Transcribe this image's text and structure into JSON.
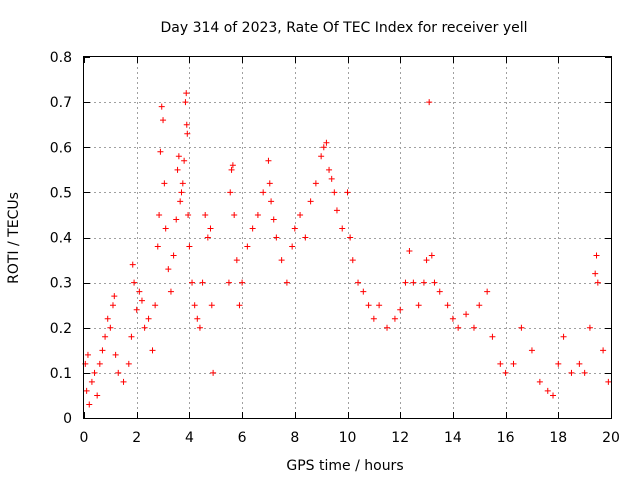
{
  "chart_data": {
    "type": "scatter",
    "title": "Day 314 of 2023, Rate Of TEC Index for receiver yell",
    "xlabel": "GPS time / hours",
    "ylabel": "ROTI / TECUs",
    "xlim": [
      0,
      20
    ],
    "ylim": [
      0,
      0.8
    ],
    "xticks": [
      0,
      2,
      4,
      6,
      8,
      10,
      12,
      14,
      16,
      18,
      20
    ],
    "yticks": [
      0,
      0.1,
      0.2,
      0.3,
      0.4,
      0.5,
      0.6,
      0.7,
      0.8
    ],
    "ytick_labels": [
      "0",
      "0.1",
      "0.2",
      "0.3",
      "0.4",
      "0.5",
      "0.6",
      "0.7",
      "0.8"
    ],
    "grid": true,
    "marker": "+",
    "marker_color": "#ff0000",
    "series": [
      {
        "name": "ROTI",
        "points": [
          [
            0.05,
            0.12
          ],
          [
            0.1,
            0.06
          ],
          [
            0.15,
            0.14
          ],
          [
            0.2,
            0.03
          ],
          [
            0.3,
            0.08
          ],
          [
            0.4,
            0.1
          ],
          [
            0.5,
            0.05
          ],
          [
            0.6,
            0.12
          ],
          [
            0.7,
            0.15
          ],
          [
            0.8,
            0.18
          ],
          [
            0.9,
            0.22
          ],
          [
            1.0,
            0.2
          ],
          [
            1.1,
            0.25
          ],
          [
            1.15,
            0.27
          ],
          [
            1.2,
            0.14
          ],
          [
            1.3,
            0.1
          ],
          [
            1.5,
            0.08
          ],
          [
            1.7,
            0.12
          ],
          [
            1.8,
            0.18
          ],
          [
            1.85,
            0.34
          ],
          [
            1.9,
            0.3
          ],
          [
            2.0,
            0.24
          ],
          [
            2.1,
            0.28
          ],
          [
            2.2,
            0.26
          ],
          [
            2.3,
            0.2
          ],
          [
            2.45,
            0.22
          ],
          [
            2.6,
            0.15
          ],
          [
            2.7,
            0.25
          ],
          [
            2.8,
            0.38
          ],
          [
            2.85,
            0.45
          ],
          [
            2.9,
            0.59
          ],
          [
            2.95,
            0.69
          ],
          [
            3.0,
            0.66
          ],
          [
            3.05,
            0.52
          ],
          [
            3.1,
            0.42
          ],
          [
            3.2,
            0.33
          ],
          [
            3.3,
            0.28
          ],
          [
            3.4,
            0.36
          ],
          [
            3.5,
            0.44
          ],
          [
            3.55,
            0.55
          ],
          [
            3.6,
            0.58
          ],
          [
            3.65,
            0.48
          ],
          [
            3.7,
            0.5
          ],
          [
            3.75,
            0.52
          ],
          [
            3.8,
            0.57
          ],
          [
            3.85,
            0.7
          ],
          [
            3.88,
            0.72
          ],
          [
            3.9,
            0.65
          ],
          [
            3.92,
            0.63
          ],
          [
            3.95,
            0.45
          ],
          [
            4.0,
            0.38
          ],
          [
            4.1,
            0.3
          ],
          [
            4.2,
            0.25
          ],
          [
            4.3,
            0.22
          ],
          [
            4.4,
            0.2
          ],
          [
            4.5,
            0.3
          ],
          [
            4.6,
            0.45
          ],
          [
            4.7,
            0.4
          ],
          [
            4.8,
            0.42
          ],
          [
            4.85,
            0.25
          ],
          [
            4.9,
            0.1
          ],
          [
            5.5,
            0.3
          ],
          [
            5.55,
            0.5
          ],
          [
            5.6,
            0.55
          ],
          [
            5.65,
            0.56
          ],
          [
            5.7,
            0.45
          ],
          [
            5.8,
            0.35
          ],
          [
            5.9,
            0.25
          ],
          [
            6.0,
            0.3
          ],
          [
            6.2,
            0.38
          ],
          [
            6.4,
            0.42
          ],
          [
            6.6,
            0.45
          ],
          [
            6.8,
            0.5
          ],
          [
            7.0,
            0.57
          ],
          [
            7.05,
            0.52
          ],
          [
            7.1,
            0.48
          ],
          [
            7.2,
            0.44
          ],
          [
            7.3,
            0.4
          ],
          [
            7.5,
            0.35
          ],
          [
            7.7,
            0.3
          ],
          [
            7.9,
            0.38
          ],
          [
            8.0,
            0.42
          ],
          [
            8.2,
            0.45
          ],
          [
            8.4,
            0.4
          ],
          [
            8.6,
            0.48
          ],
          [
            8.8,
            0.52
          ],
          [
            9.0,
            0.58
          ],
          [
            9.1,
            0.6
          ],
          [
            9.2,
            0.61
          ],
          [
            9.3,
            0.55
          ],
          [
            9.4,
            0.53
          ],
          [
            9.5,
            0.5
          ],
          [
            9.6,
            0.46
          ],
          [
            9.8,
            0.42
          ],
          [
            10.0,
            0.5
          ],
          [
            10.1,
            0.4
          ],
          [
            10.2,
            0.35
          ],
          [
            10.4,
            0.3
          ],
          [
            10.6,
            0.28
          ],
          [
            10.8,
            0.25
          ],
          [
            11.0,
            0.22
          ],
          [
            11.2,
            0.25
          ],
          [
            11.5,
            0.2
          ],
          [
            11.8,
            0.22
          ],
          [
            12.0,
            0.24
          ],
          [
            12.2,
            0.3
          ],
          [
            12.35,
            0.37
          ],
          [
            12.5,
            0.3
          ],
          [
            12.7,
            0.25
          ],
          [
            12.9,
            0.3
          ],
          [
            13.0,
            0.35
          ],
          [
            13.1,
            0.7
          ],
          [
            13.2,
            0.36
          ],
          [
            13.3,
            0.3
          ],
          [
            13.5,
            0.28
          ],
          [
            13.8,
            0.25
          ],
          [
            14.0,
            0.22
          ],
          [
            14.2,
            0.2
          ],
          [
            14.5,
            0.23
          ],
          [
            14.8,
            0.2
          ],
          [
            15.0,
            0.25
          ],
          [
            15.3,
            0.28
          ],
          [
            15.5,
            0.18
          ],
          [
            15.8,
            0.12
          ],
          [
            16.0,
            0.1
          ],
          [
            16.3,
            0.12
          ],
          [
            16.6,
            0.2
          ],
          [
            17.0,
            0.15
          ],
          [
            17.3,
            0.08
          ],
          [
            17.6,
            0.06
          ],
          [
            17.8,
            0.05
          ],
          [
            18.0,
            0.12
          ],
          [
            18.2,
            0.18
          ],
          [
            18.5,
            0.1
          ],
          [
            18.8,
            0.12
          ],
          [
            19.0,
            0.1
          ],
          [
            19.2,
            0.2
          ],
          [
            19.4,
            0.32
          ],
          [
            19.45,
            0.36
          ],
          [
            19.5,
            0.3
          ],
          [
            19.7,
            0.15
          ],
          [
            19.9,
            0.08
          ]
        ]
      }
    ]
  }
}
